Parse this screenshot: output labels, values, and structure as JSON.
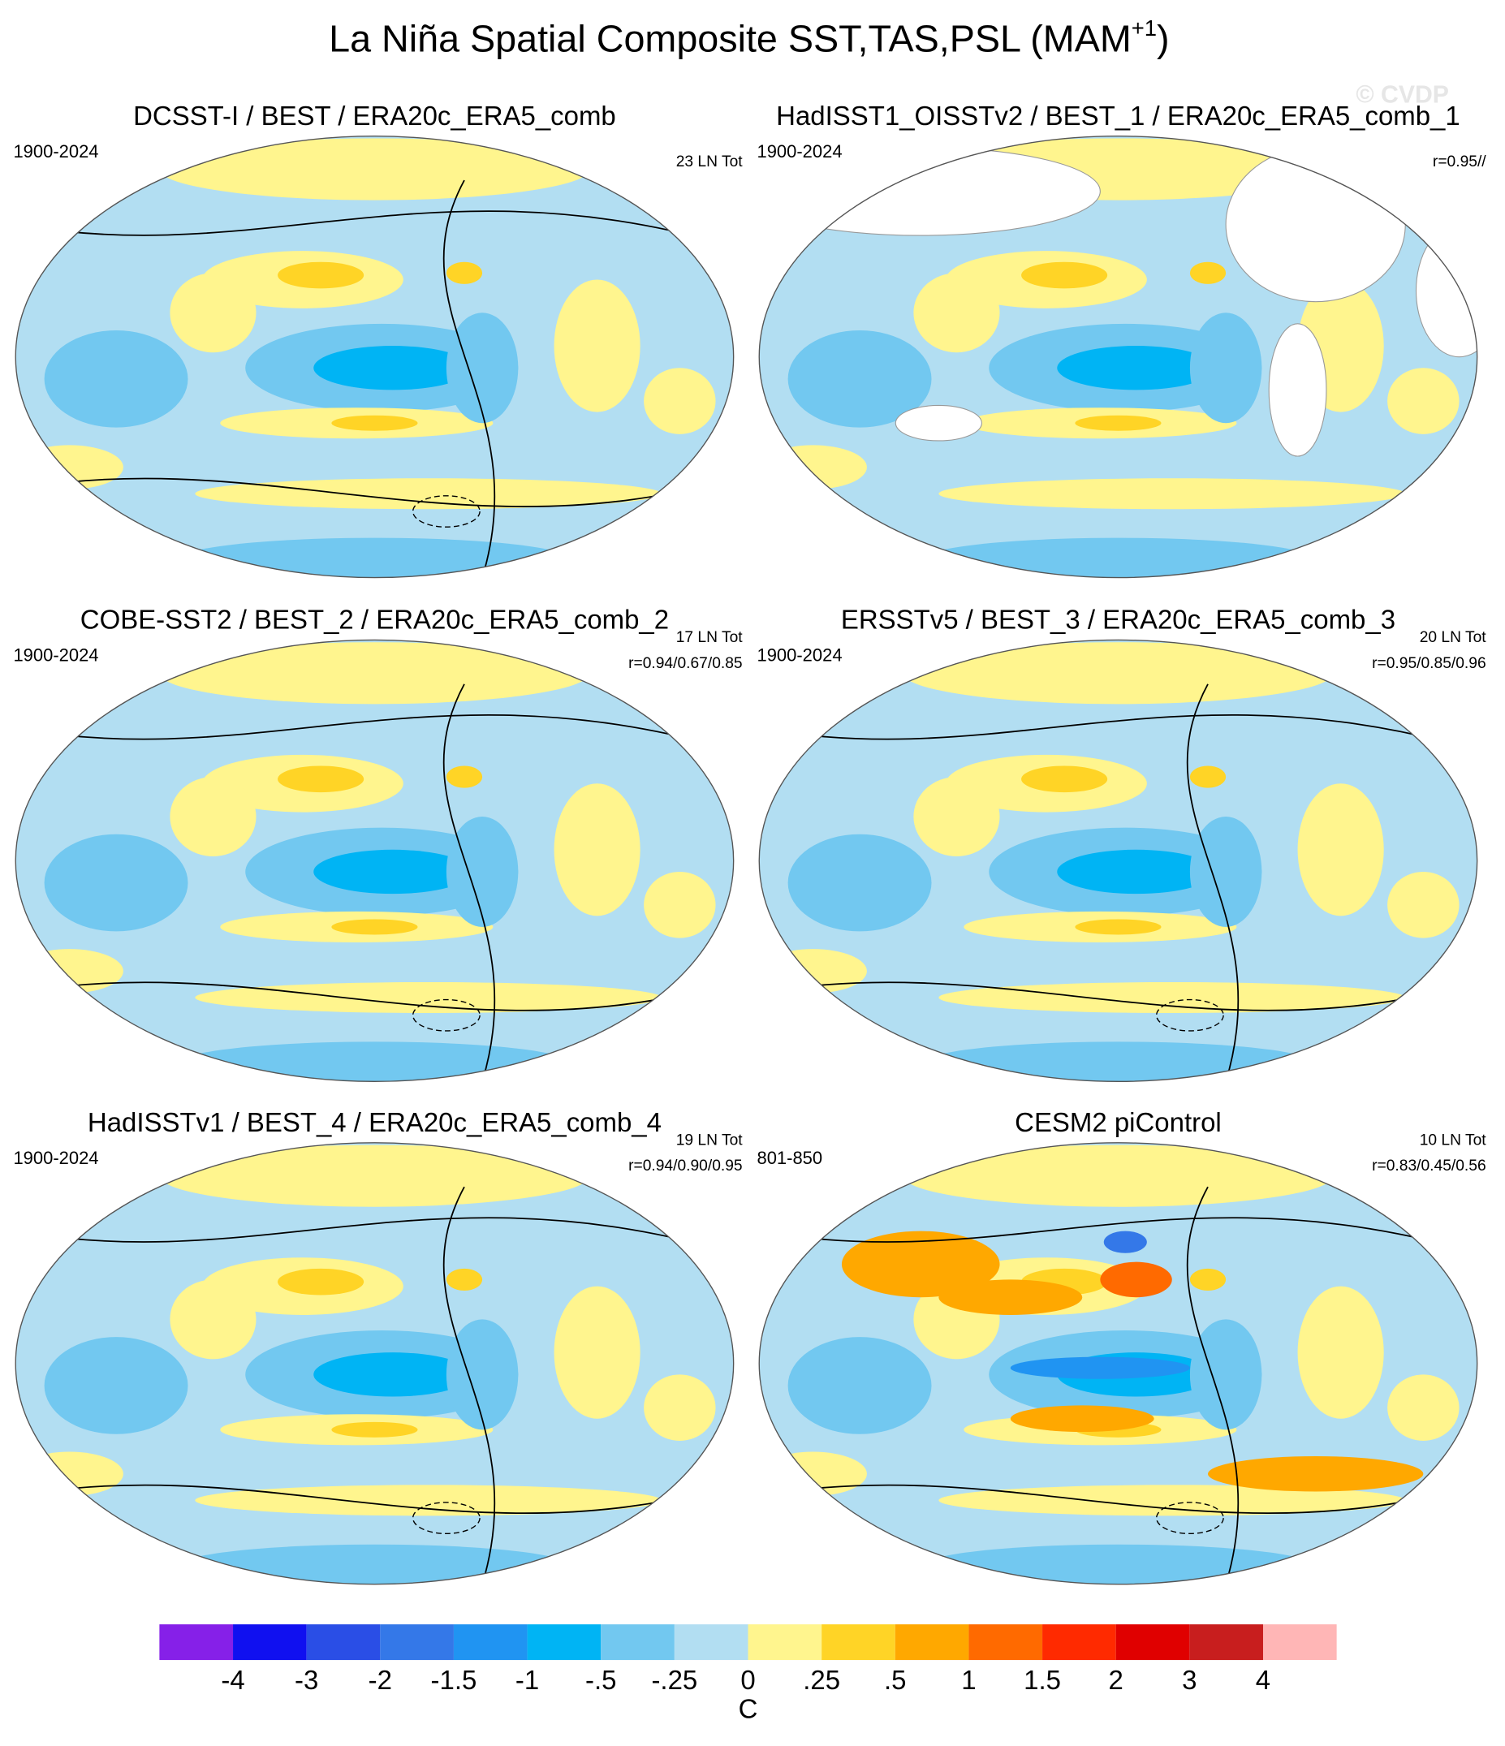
{
  "title": "La Niña Spatial Composite SST,TAS,PSL (MAM",
  "title_superscript": "+1",
  "title_end": ")",
  "watermark": "© CVDP",
  "panels": [
    {
      "title": "DCSST-I / BEST / ERA20c_ERA5_comb",
      "period": "1900-2024",
      "count": "23 LN Tot"
    },
    {
      "title": "HadISST1_OISSTv2 / BEST_1 / ERA20c_ERA5_comb_1",
      "period": "1900-2024",
      "stats": "r=0.95//"
    },
    {
      "title": "COBE-SST2 / BEST_2 / ERA20c_ERA5_comb_2",
      "period": "1900-2024",
      "count": "17 LN Tot",
      "stats": "r=0.94/0.67/0.85"
    },
    {
      "title": "ERSSTv5 / BEST_3 / ERA20c_ERA5_comb_3",
      "period": "1900-2024",
      "count": "20 LN Tot",
      "stats": "r=0.95/0.85/0.96"
    },
    {
      "title": "HadISSTv1 / BEST_4 / ERA20c_ERA5_comb_4",
      "period": "1900-2024",
      "count": "19 LN Tot",
      "stats": "r=0.94/0.90/0.95"
    },
    {
      "title": "CESM2 piControl",
      "period": "801-850",
      "count": "10 LN Tot",
      "stats": "r=0.83/0.45/0.56"
    }
  ],
  "colorbar": {
    "levels": [
      -4,
      -3,
      -2,
      -1.5,
      -1,
      {
        "value": -0.5,
        "label": "-.5"
      },
      {
        "value": -0.25,
        "label": "-.25"
      },
      0,
      {
        "value": 0.25,
        "label": ".25"
      },
      {
        "value": 0.5,
        "label": ".5"
      },
      1,
      1.5,
      2,
      3,
      4
    ],
    "colors": [
      "#8620e8",
      "#1010f0",
      "#2a4ee6",
      "#3478e8",
      "#2094f2",
      "#00b4f4",
      "#72c8f0",
      "#b2def2",
      "#fff58e",
      "#ffd426",
      "#ffa800",
      "#ff6a00",
      "#ff2a00",
      "#e00000",
      "#c81e1e",
      "#ffb6b6"
    ],
    "label": "C"
  }
}
